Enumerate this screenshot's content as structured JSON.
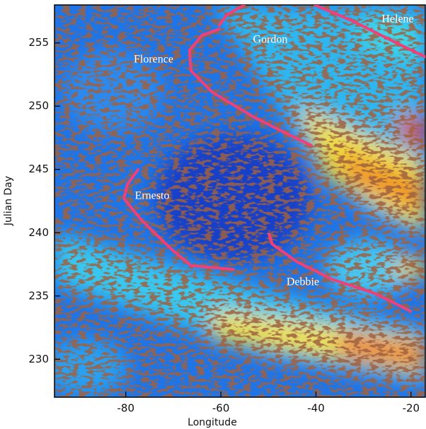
{
  "chart_data": {
    "type": "line",
    "x_label": "Longitude",
    "y_label": "Julian Day",
    "xlim": [
      -95,
      -17
    ],
    "ylim": [
      227,
      258
    ],
    "xticks": [
      -80,
      -60,
      -40,
      -20
    ],
    "yticks": [
      230,
      235,
      240,
      245,
      250,
      255
    ],
    "series": [
      {
        "name": "Florence",
        "color": "#f0407a",
        "x": [
          -60.3,
          -64.0,
          -66.6,
          -66.3,
          -61.8,
          -52.9,
          -45.4,
          -41.0
        ],
        "values": [
          256.1,
          255.6,
          254.4,
          252.8,
          251.1,
          249.1,
          247.7,
          246.9
        ]
      },
      {
        "name": "Gordon",
        "color": "#f0407a",
        "x": [
          -55.1,
          -58.8,
          -60.3
        ],
        "values": [
          258.0,
          257.2,
          256.4
        ]
      },
      {
        "name": "Helene",
        "color": "#f0407a",
        "x": [
          -40.2,
          -32.1,
          -23.1,
          -17.0
        ],
        "values": [
          258.0,
          256.7,
          255.0,
          253.9
        ]
      },
      {
        "name": "Ernesto",
        "color": "#f0407a",
        "x": [
          -77.4,
          -79.7,
          -80.4,
          -76.7,
          -70.7,
          -66.3,
          -57.4
        ],
        "values": [
          245.0,
          243.8,
          242.7,
          241.0,
          238.8,
          237.4,
          237.1
        ]
      },
      {
        "name": "Debbie",
        "color": "#f0407a",
        "x": [
          -49.9,
          -49.2,
          -44.0,
          -36.5,
          -27.6,
          -20.1
        ],
        "values": [
          239.9,
          239.1,
          237.7,
          236.3,
          235.2,
          233.8
        ]
      }
    ]
  }
}
